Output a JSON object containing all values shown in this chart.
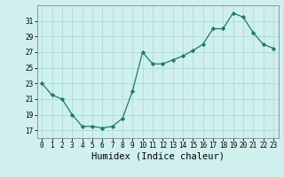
{
  "x": [
    0,
    1,
    2,
    3,
    4,
    5,
    6,
    7,
    8,
    9,
    10,
    11,
    12,
    13,
    14,
    15,
    16,
    17,
    18,
    19,
    20,
    21,
    22,
    23
  ],
  "y": [
    23,
    21.5,
    21,
    19,
    17.5,
    17.5,
    17.3,
    17.5,
    18.5,
    22,
    27,
    25.5,
    25.5,
    26,
    26.5,
    27.2,
    28,
    30,
    30,
    32,
    31.5,
    29.5,
    28,
    27.5
  ],
  "line_color": "#1a7a6e",
  "marker": "D",
  "marker_size": 2.2,
  "bg_color": "#cff0ec",
  "grid_color": "#aaddda",
  "xlabel": "Humidex (Indice chaleur)",
  "ylim": [
    16,
    33
  ],
  "xlim": [
    -0.5,
    23.5
  ],
  "yticks": [
    17,
    19,
    21,
    23,
    25,
    27,
    29,
    31
  ],
  "xticks": [
    0,
    1,
    2,
    3,
    4,
    5,
    6,
    7,
    8,
    9,
    10,
    11,
    12,
    13,
    14,
    15,
    16,
    17,
    18,
    19,
    20,
    21,
    22,
    23
  ],
  "tick_fontsize": 5.5,
  "label_fontsize": 7.5,
  "spine_color": "#888888"
}
